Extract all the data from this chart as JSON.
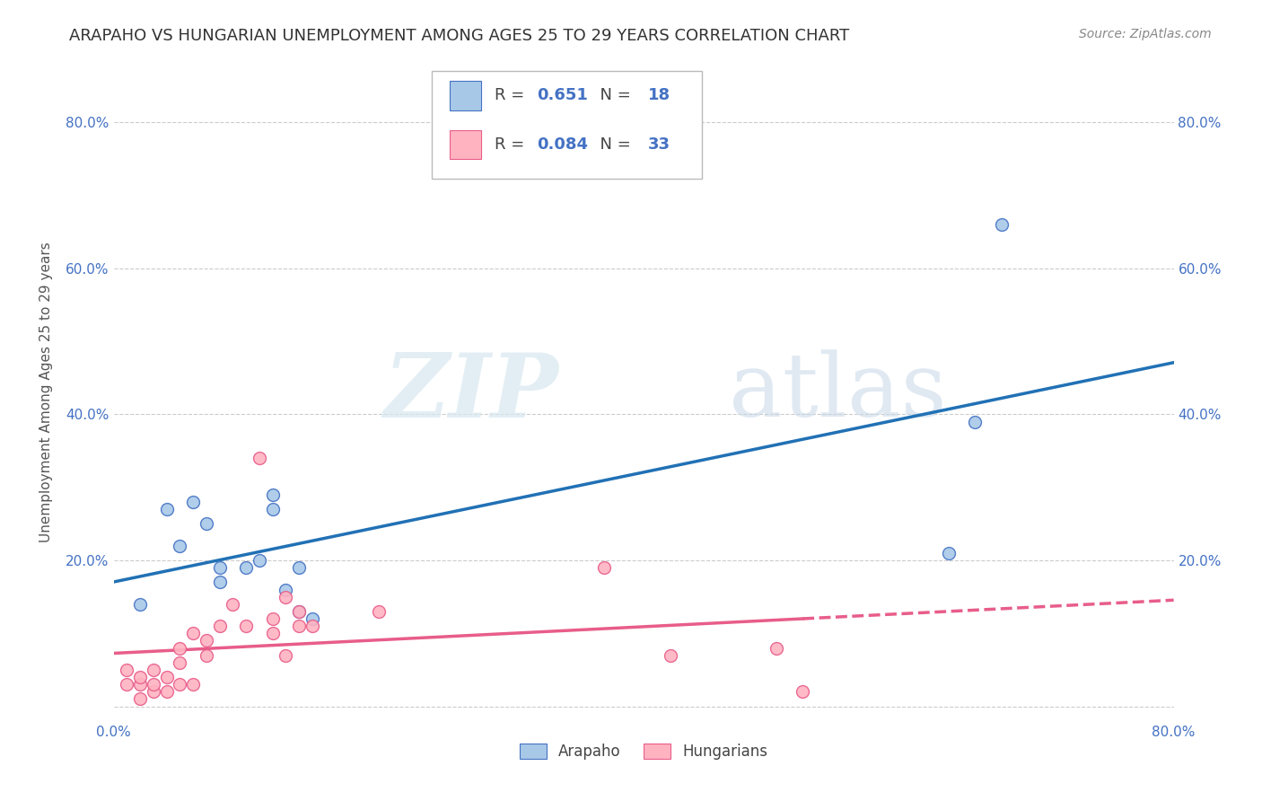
{
  "title": "ARAPAHO VS HUNGARIAN UNEMPLOYMENT AMONG AGES 25 TO 29 YEARS CORRELATION CHART",
  "source": "Source: ZipAtlas.com",
  "ylabel": "Unemployment Among Ages 25 to 29 years",
  "xlim": [
    0.0,
    0.8
  ],
  "ylim": [
    -0.02,
    0.88
  ],
  "x_ticks": [
    0.0,
    0.1,
    0.2,
    0.3,
    0.4,
    0.5,
    0.6,
    0.7,
    0.8
  ],
  "y_ticks": [
    0.0,
    0.2,
    0.4,
    0.6,
    0.8
  ],
  "arapaho_color": "#a8c8e8",
  "hungarian_color": "#ffb3c1",
  "arapaho_edge_color": "#4472c4",
  "hungarian_edge_color": "#e85d8a",
  "arapaho_line_color": "#2171b5",
  "hungarian_line_color": "#e85d8a",
  "arapaho_R": 0.651,
  "arapaho_N": 18,
  "hungarian_R": 0.084,
  "hungarian_N": 33,
  "arapaho_x": [
    0.02,
    0.04,
    0.05,
    0.06,
    0.07,
    0.08,
    0.08,
    0.1,
    0.11,
    0.12,
    0.12,
    0.13,
    0.14,
    0.14,
    0.15,
    0.63,
    0.65,
    0.67
  ],
  "arapaho_y": [
    0.14,
    0.27,
    0.22,
    0.28,
    0.25,
    0.17,
    0.19,
    0.19,
    0.2,
    0.29,
    0.27,
    0.16,
    0.13,
    0.19,
    0.12,
    0.21,
    0.39,
    0.66
  ],
  "hungarian_x": [
    0.01,
    0.01,
    0.02,
    0.02,
    0.02,
    0.03,
    0.03,
    0.03,
    0.04,
    0.04,
    0.05,
    0.05,
    0.05,
    0.06,
    0.06,
    0.07,
    0.07,
    0.08,
    0.09,
    0.1,
    0.11,
    0.12,
    0.12,
    0.13,
    0.13,
    0.14,
    0.14,
    0.15,
    0.2,
    0.37,
    0.42,
    0.5,
    0.52
  ],
  "hungarian_y": [
    0.03,
    0.05,
    0.01,
    0.03,
    0.04,
    0.02,
    0.03,
    0.05,
    0.02,
    0.04,
    0.03,
    0.06,
    0.08,
    0.03,
    0.1,
    0.07,
    0.09,
    0.11,
    0.14,
    0.11,
    0.34,
    0.1,
    0.12,
    0.07,
    0.15,
    0.13,
    0.11,
    0.11,
    0.13,
    0.19,
    0.07,
    0.08,
    0.02
  ],
  "watermark_zip": "ZIP",
  "watermark_atlas": "atlas",
  "background_color": "#ffffff",
  "grid_color": "#cccccc",
  "title_fontsize": 13,
  "axis_label_fontsize": 11,
  "tick_fontsize": 11,
  "legend_fontsize": 13,
  "scatter_size": 100
}
